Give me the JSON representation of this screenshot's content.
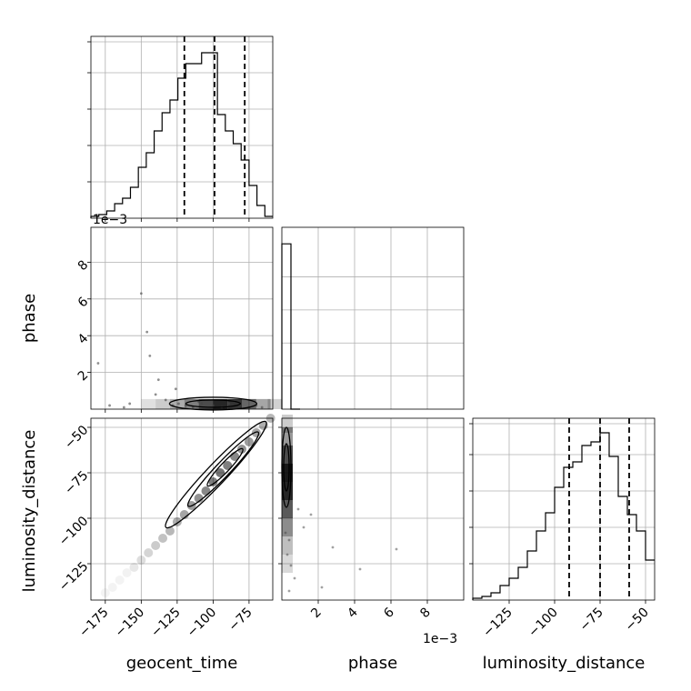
{
  "chart_data": [
    {
      "type": "histogram",
      "panel": "geocent_time-1d",
      "bin_edges": [
        -185,
        -179.5,
        -174,
        -168.5,
        -163,
        -157.5,
        -152,
        -146.5,
        -141,
        -135.5,
        -130,
        -124.5,
        -119,
        -113.5,
        -108,
        -102.5,
        -97,
        -91.5,
        -86,
        -80.5,
        -75,
        -69.5,
        -64,
        -58.5
      ],
      "counts": [
        0.01,
        0.02,
        0.04,
        0.08,
        0.11,
        0.17,
        0.28,
        0.36,
        0.48,
        0.58,
        0.65,
        0.77,
        0.85,
        0.85,
        0.91,
        0.91,
        0.57,
        0.48,
        0.41,
        0.32,
        0.18,
        0.07,
        0.01
      ],
      "quantiles": [
        -120,
        -99,
        -78
      ],
      "xlim": [
        -185,
        -58.5
      ]
    },
    {
      "type": "histogram",
      "panel": "phase-1d",
      "bin_edges": [
        0,
        0.0005,
        0.001
      ],
      "counts": [
        1.0,
        0
      ],
      "xlim": [
        0,
        0.01
      ],
      "x_offset_text": "1e−3"
    },
    {
      "type": "histogram",
      "panel": "luminosity_distance-1d",
      "bin_edges": [
        -145,
        -140,
        -135,
        -130,
        -125,
        -120,
        -115,
        -110,
        -105,
        -100,
        -95,
        -90,
        -85,
        -80,
        -75,
        -70,
        -65,
        -60,
        -55,
        -50,
        -45
      ],
      "counts": [
        0.01,
        0.02,
        0.04,
        0.08,
        0.12,
        0.18,
        0.27,
        0.38,
        0.48,
        0.62,
        0.73,
        0.76,
        0.85,
        0.87,
        0.92,
        0.79,
        0.57,
        0.47,
        0.38,
        0.22
      ],
      "quantiles": [
        -92,
        -75,
        -59
      ],
      "xlim": [
        -145,
        -45
      ],
      "xticks": [
        -125,
        -100,
        -75,
        -50
      ]
    },
    {
      "type": "scatter",
      "panel": "phase-vs-geocent_time",
      "x": [
        -180,
        -172,
        -162,
        -158,
        -150,
        -146,
        -144,
        -138,
        -133,
        -128,
        -124,
        -119,
        -114,
        -108,
        -100,
        -94,
        -89,
        -82,
        -75,
        -70,
        -66,
        -140,
        -126,
        -110
      ],
      "y": [
        0.0025,
        0.0002,
        0.0001,
        0.0003,
        0.0063,
        0.0042,
        0.0029,
        0.0016,
        0.0005,
        0.0002,
        0.0003,
        0.0002,
        0.0001,
        0.0003,
        0.0002,
        0.0001,
        0.0003,
        0.0002,
        0.0001,
        0.0002,
        0.0001,
        0.0008,
        0.0011,
        0.0004
      ],
      "xlim": [
        -185,
        -58.5
      ],
      "ylim": [
        0,
        0.0099
      ],
      "yticks": [
        0.002,
        0.004,
        0.006,
        0.008
      ],
      "ytick_labels": [
        "2",
        "4",
        "6",
        "8"
      ],
      "ylabel": "phase",
      "y_offset_text": "1e−3"
    },
    {
      "type": "scatter",
      "panel": "luminosity_distance-vs-geocent_time",
      "x": [
        -175,
        -170,
        -165,
        -160,
        -155,
        -150,
        -145,
        -140,
        -135,
        -130,
        -125,
        -120,
        -115,
        -110,
        -105,
        -100,
        -95,
        -90,
        -85,
        -80,
        -75,
        -70,
        -65,
        -60
      ],
      "y": [
        -141,
        -138,
        -134,
        -130,
        -127,
        -123,
        -119,
        -115,
        -111,
        -107,
        -102,
        -98,
        -93,
        -89,
        -85,
        -80,
        -75,
        -71,
        -66,
        -62,
        -58,
        -53,
        -49,
        -45
      ],
      "xlim": [
        -185,
        -58.5
      ],
      "ylim": [
        -145,
        -45
      ],
      "xticks": [
        -175,
        -150,
        -125,
        -100,
        -75
      ],
      "yticks": [
        -125,
        -100,
        -75,
        -50
      ],
      "xlabel": "geocent_time",
      "ylabel": "luminosity_distance"
    },
    {
      "type": "scatter",
      "panel": "luminosity_distance-vs-phase",
      "x": [
        0.0002,
        0.0004,
        0.0003,
        0.0005,
        0.0007,
        0.0004,
        0.0012,
        0.0022,
        0.0028,
        0.0043,
        0.0063,
        0.0016,
        0.0009
      ],
      "y": [
        -108,
        -112,
        -120,
        -126,
        -133,
        -140,
        -105,
        -138,
        -116,
        -128,
        -117,
        -98,
        -95
      ],
      "xlim": [
        0,
        0.01
      ],
      "ylim": [
        -145,
        -45
      ],
      "xticks": [
        0.002,
        0.004,
        0.006,
        0.008
      ],
      "xtick_labels": [
        "2",
        "4",
        "6",
        "8"
      ],
      "xlabel": "phase",
      "x_offset_text": "1e−3"
    }
  ]
}
